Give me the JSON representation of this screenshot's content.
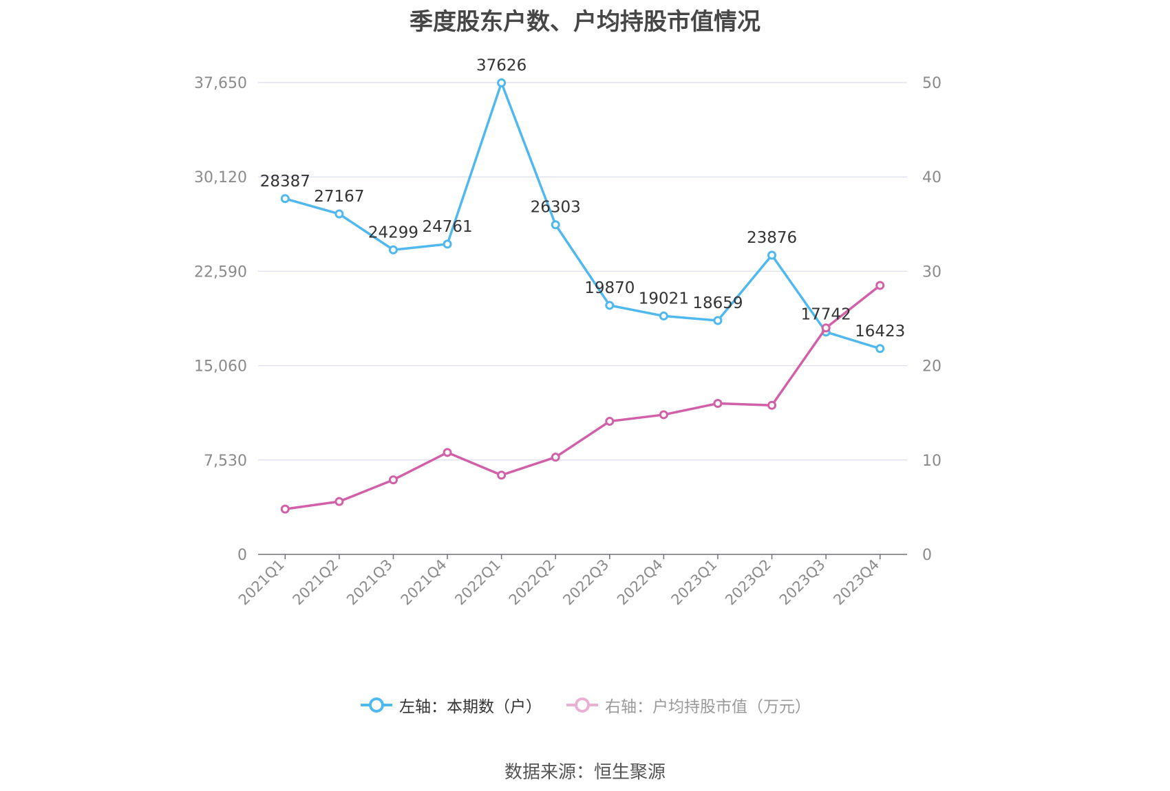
{
  "chart_data": {
    "type": "line",
    "title": "季度股东户数、户均持股市值情况",
    "categories": [
      "2021Q1",
      "2021Q2",
      "2021Q3",
      "2021Q4",
      "2022Q1",
      "2022Q2",
      "2022Q3",
      "2022Q4",
      "2023Q1",
      "2023Q2",
      "2023Q3",
      "2023Q4"
    ],
    "left_axis": {
      "ticks": [
        "0",
        "7,530",
        "15,060",
        "22,590",
        "30,120",
        "37,650"
      ],
      "min": 0,
      "max": 37650
    },
    "right_axis": {
      "ticks": [
        "0",
        "10",
        "20",
        "30",
        "40",
        "50"
      ],
      "min": 0,
      "max": 50
    },
    "series": [
      {
        "name": "左轴：本期数（户）",
        "axis": "left",
        "color": "#4fb8ee",
        "values": [
          28387,
          27167,
          24299,
          24761,
          37626,
          26303,
          19870,
          19021,
          18659,
          23876,
          17742,
          16423
        ],
        "labels": [
          "28387",
          "27167",
          "24299",
          "24761",
          "37626",
          "26303",
          "19870",
          "19021",
          "18659",
          "23876",
          "17742",
          "16423"
        ]
      },
      {
        "name": "右轴：户均持股市值（万元）",
        "axis": "right",
        "color": "#d160a8",
        "values": [
          4.8,
          5.6,
          7.9,
          10.8,
          8.4,
          10.3,
          14.1,
          14.8,
          16.0,
          15.8,
          24.0,
          28.5
        ]
      }
    ],
    "legend_position": "bottom",
    "grid": true
  },
  "source": "数据来源：恒生聚源"
}
